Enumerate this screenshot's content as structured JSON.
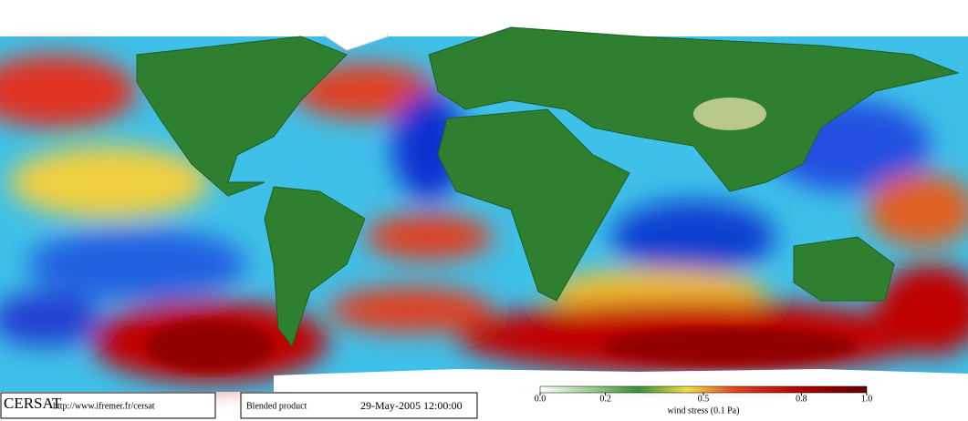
{
  "footer": {
    "logo": "CERSAT",
    "url": "http://www.ifremer.fr/cersat",
    "product": "Blended product",
    "date": "29-May-2005 12:00:00"
  },
  "colorbar": {
    "label": "wind stress (0.1 Pa)",
    "lim": [
      0,
      1
    ],
    "ticks": [
      {
        "value": 0,
        "label": "0.0"
      },
      0.2,
      0.5,
      0.8,
      {
        "value": 1,
        "label": "1.0"
      }
    ]
  }
}
